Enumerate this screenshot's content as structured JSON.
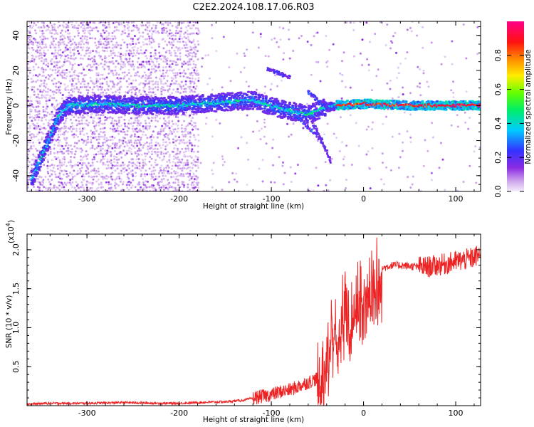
{
  "figure": {
    "title": "C2E2.2024.108.17.06.R03"
  },
  "chart_data": [
    {
      "type": "heatmap",
      "xlabel": "Height of straight line (km)",
      "ylabel": "Frequency (Hz)",
      "xlim": [
        -365,
        127
      ],
      "ylim": [
        -49,
        48
      ],
      "xticks": [
        -300,
        -200,
        -100,
        0,
        100
      ],
      "yticks": [
        -40,
        -20,
        0,
        20,
        40
      ],
      "colorbar": {
        "label": "Normalized spectral amplitude",
        "range": [
          0.0,
          1.0
        ],
        "ticks": [
          0.0,
          0.2,
          0.4,
          0.6,
          0.8
        ],
        "colormap": "rainbow (purple-blue-cyan-green-yellow-red-magenta)"
      },
      "ridge_points": [
        {
          "x": -360,
          "y": -42
        },
        {
          "x": -350,
          "y": -30
        },
        {
          "x": -340,
          "y": -18
        },
        {
          "x": -330,
          "y": -5
        },
        {
          "x": -320,
          "y": 0
        },
        {
          "x": -280,
          "y": 1
        },
        {
          "x": -250,
          "y": 0
        },
        {
          "x": -200,
          "y": 0
        },
        {
          "x": -150,
          "y": 2
        },
        {
          "x": -120,
          "y": 3
        },
        {
          "x": -90,
          "y": -2
        },
        {
          "x": -60,
          "y": -5
        },
        {
          "x": -40,
          "y": -1
        },
        {
          "x": -30,
          "y": 0
        },
        {
          "x": 0,
          "y": 1
        },
        {
          "x": 50,
          "y": 0
        },
        {
          "x": 127,
          "y": 0
        }
      ]
    },
    {
      "type": "line",
      "xlabel": "Height of straight line (km)",
      "ylabel": "SNR (10 * v/v)",
      "y_multiplier": "(x10",
      "y_multiplier_exp": "4",
      "y_multiplier_close": ")",
      "xlim": [
        -365,
        127
      ],
      "ylim": [
        0,
        2.2
      ],
      "xticks": [
        -300,
        -200,
        -100,
        0,
        100
      ],
      "yticks": [
        0.5,
        1.0,
        1.5,
        2.0
      ],
      "ytick_labels": [
        "0.5",
        "1.0",
        "1.5",
        "2.0"
      ],
      "color": "#ee2222",
      "series": [
        {
          "x": [
            -365,
            -340,
            -300,
            -260,
            -220,
            -200,
            -180,
            -150,
            -130,
            -110,
            -100,
            -90,
            -80,
            -70,
            -60,
            -50,
            -45,
            -40,
            -35,
            -30,
            -25,
            -20,
            -15,
            -10,
            -5,
            0,
            5,
            10,
            15,
            20,
            25,
            30,
            40,
            50,
            60,
            70,
            80,
            90,
            100,
            110,
            120,
            127
          ],
          "y": [
            0.02,
            0.03,
            0.03,
            0.04,
            0.03,
            0.03,
            0.04,
            0.05,
            0.07,
            0.12,
            0.14,
            0.18,
            0.2,
            0.25,
            0.3,
            0.35,
            0.5,
            0.75,
            0.95,
            1.05,
            1.2,
            1.3,
            1.25,
            1.35,
            1.45,
            1.5,
            1.62,
            1.7,
            1.72,
            1.76,
            1.78,
            1.8,
            1.8,
            1.79,
            1.78,
            1.78,
            1.8,
            1.82,
            1.85,
            1.87,
            1.9,
            1.95
          ]
        }
      ]
    }
  ]
}
